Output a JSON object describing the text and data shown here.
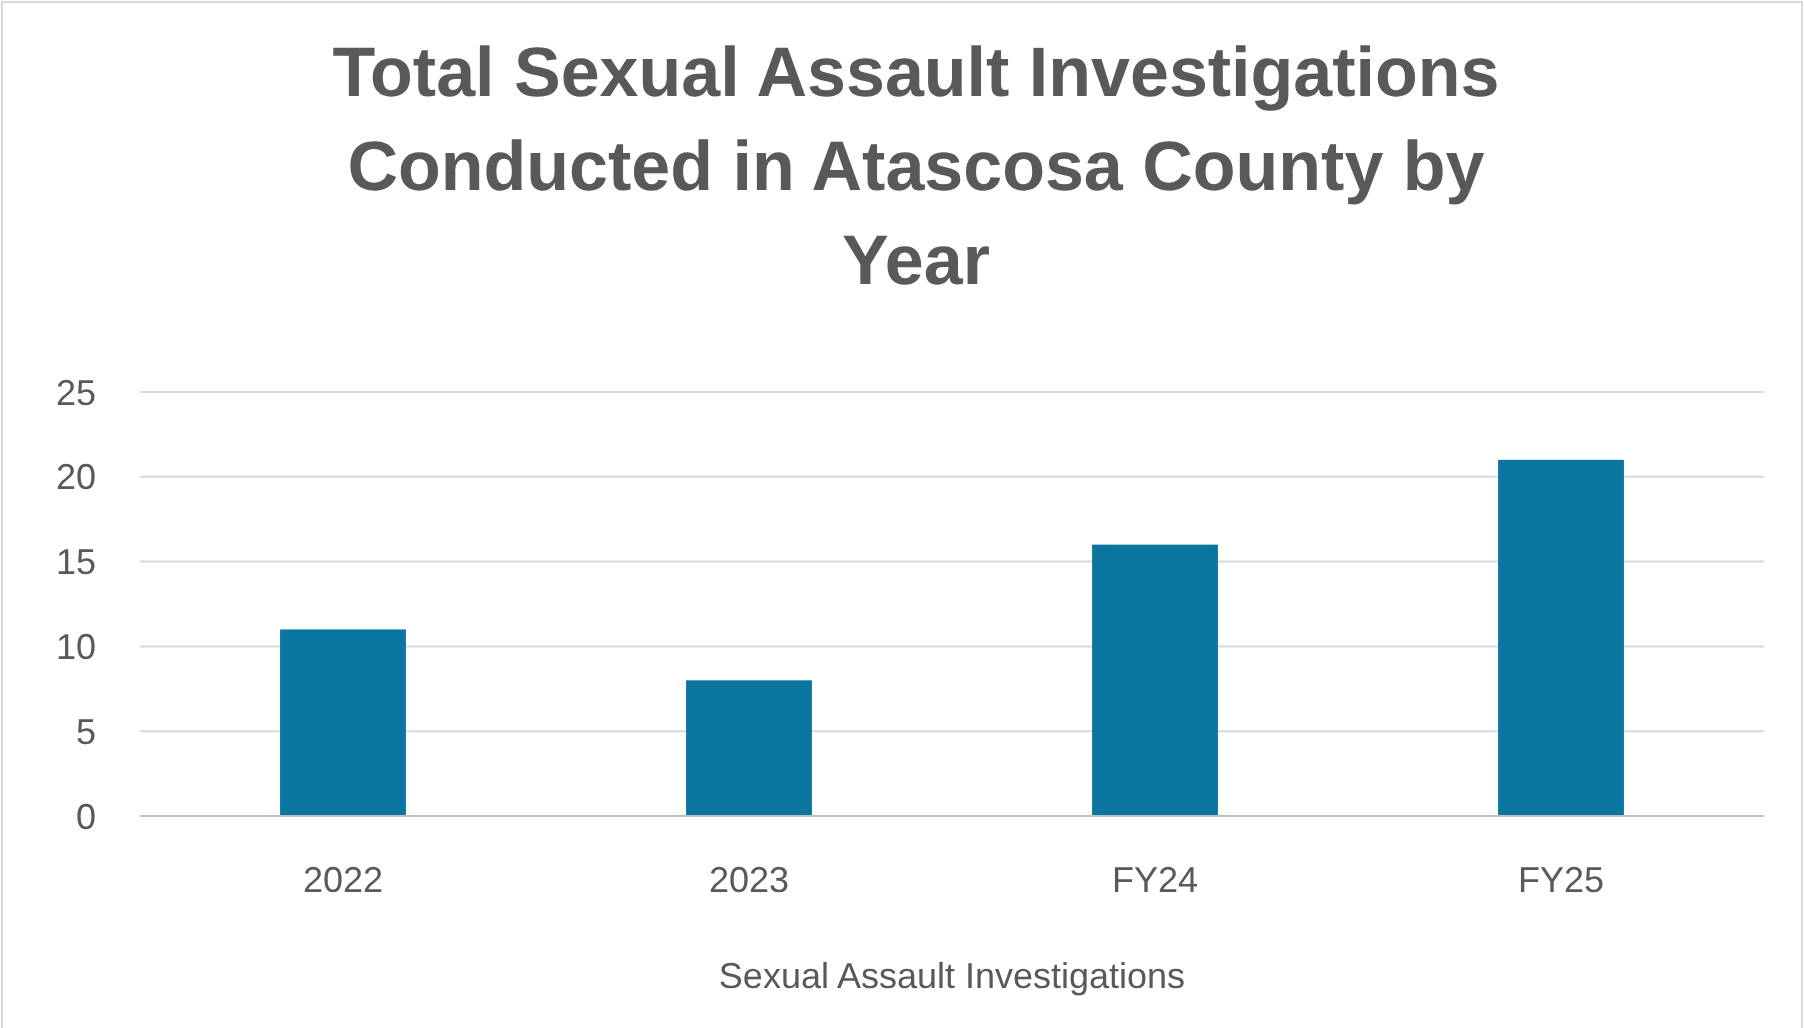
{
  "chart_data": {
    "type": "bar",
    "title": "Total Sexual Assault Investigations Conducted in Atascosa County by Year",
    "xlabel": "Sexual Assault Investigations",
    "categories": [
      "2022",
      "2023",
      "FY24",
      "FY25"
    ],
    "values": [
      11,
      8,
      16,
      21
    ],
    "color": "#0a76a0",
    "ylim": [
      0,
      25
    ],
    "yticks": [
      0,
      5,
      10,
      15,
      20,
      25
    ],
    "grid": "y"
  }
}
